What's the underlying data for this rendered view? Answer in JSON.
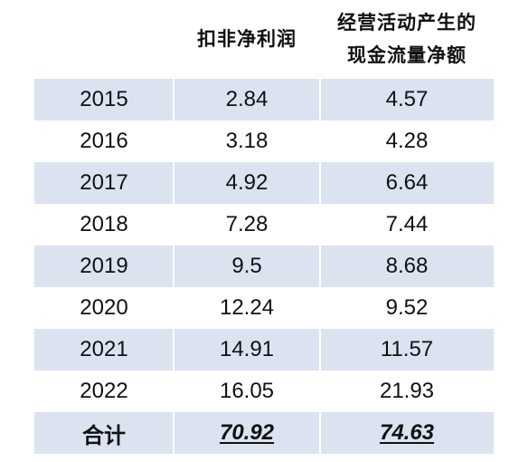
{
  "headers": {
    "year": "",
    "col1": "扣非净利润",
    "col2_line1": "经营活动产生的",
    "col2_line2": "现金流量净额"
  },
  "rows": [
    {
      "year": "2015",
      "v1": "2.84",
      "v2": "4.57"
    },
    {
      "year": "2016",
      "v1": "3.18",
      "v2": "4.28"
    },
    {
      "year": "2017",
      "v1": "4.92",
      "v2": "6.64"
    },
    {
      "year": "2018",
      "v1": "7.28",
      "v2": "7.44"
    },
    {
      "year": "2019",
      "v1": "9.5",
      "v2": "8.68"
    },
    {
      "year": "2020",
      "v1": "12.24",
      "v2": "9.52"
    },
    {
      "year": "2021",
      "v1": "14.91",
      "v2": "11.57"
    },
    {
      "year": "2022",
      "v1": "16.05",
      "v2": "21.93"
    }
  ],
  "total": {
    "label": "合计",
    "v1": "70.92",
    "v2": "74.63"
  },
  "colors": {
    "shade": "#dbe3f1"
  }
}
